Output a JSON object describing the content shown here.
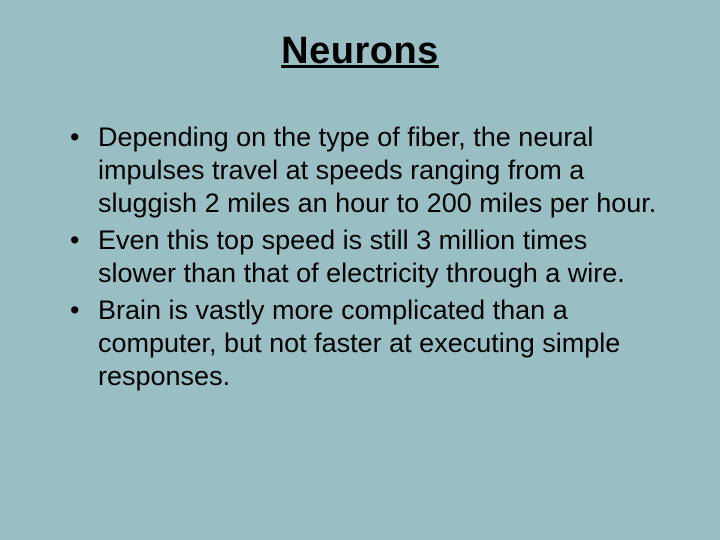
{
  "slide": {
    "background_color": "#99bfc4",
    "text_color": "#000000",
    "title": "Neurons",
    "title_fontsize": 38,
    "title_underline": true,
    "title_bold": true,
    "body_fontsize": 27,
    "bullets": [
      "Depending on the type of fiber, the neural impulses travel at speeds ranging from a sluggish 2 miles an hour to 200 miles per hour.",
      "Even this top speed is still 3 million times slower than that of electricity through a wire.",
      "Brain is vastly more complicated than a computer, but not faster at executing simple responses."
    ]
  }
}
